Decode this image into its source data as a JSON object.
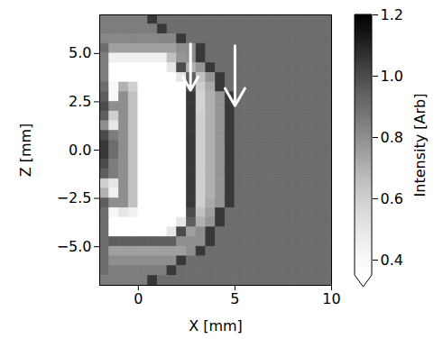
{
  "chart_data": {
    "type": "heatmap",
    "xlabel": "X [mm]",
    "ylabel": "Z [mm]",
    "xlim": [
      -2,
      10
    ],
    "ylim": [
      -7,
      7
    ],
    "xticks": [
      0,
      5,
      10
    ],
    "yticks": [
      {
        "value": -5,
        "label": "−5.0"
      },
      {
        "value": -2.5,
        "label": "−2.5"
      },
      {
        "value": 0,
        "label": "0.0"
      },
      {
        "value": 2.5,
        "label": "2.5"
      },
      {
        "value": 5,
        "label": "5.0"
      }
    ],
    "x_edges": [
      -2,
      -1.5,
      -1,
      -0.5,
      0,
      0.5,
      1,
      1.5,
      2,
      2.5,
      3,
      3.5,
      4,
      4.5,
      5,
      5.5,
      6,
      6.5,
      7,
      7.5,
      8,
      8.5,
      9,
      9.5,
      10
    ],
    "z_edges": [
      7,
      6.5,
      6,
      5.5,
      5,
      4.5,
      4,
      3.5,
      3,
      2.5,
      2,
      1.5,
      1,
      0.5,
      0,
      -0.5,
      -1,
      -1.5,
      -2,
      -2.5,
      -3,
      -3.5,
      -4,
      -4.5,
      -5,
      -5.5,
      -6,
      -6.5,
      -7
    ],
    "cells": [
      [
        0.85,
        0.85,
        0.85,
        0.85,
        0.85,
        1.05,
        0.9,
        0.9,
        0.9,
        0.9,
        0.9,
        0.9,
        0.9,
        0.9,
        0.9,
        0.9,
        0.9,
        0.9,
        0.9,
        0.9,
        0.9,
        0.9,
        0.9,
        0.9
      ],
      [
        0.85,
        0.85,
        0.85,
        0.85,
        0.85,
        0.85,
        1.05,
        0.9,
        0.9,
        0.9,
        0.9,
        0.9,
        0.9,
        0.9,
        0.9,
        0.9,
        0.9,
        0.9,
        0.9,
        0.9,
        0.9,
        0.9,
        0.9,
        0.9
      ],
      [
        0.82,
        0.82,
        0.82,
        0.82,
        0.82,
        0.82,
        0.82,
        0.82,
        1.05,
        0.9,
        0.9,
        0.9,
        0.9,
        0.9,
        0.9,
        0.9,
        0.9,
        0.9,
        0.9,
        0.9,
        0.9,
        0.9,
        0.9,
        0.9
      ],
      [
        0.9,
        0.75,
        0.75,
        0.75,
        0.75,
        0.75,
        0.75,
        0.75,
        0.8,
        0.8,
        1.05,
        0.9,
        0.9,
        0.9,
        0.9,
        0.9,
        0.9,
        0.9,
        0.9,
        0.9,
        0.9,
        0.9,
        0.9,
        0.9
      ],
      [
        0.85,
        0.45,
        0.45,
        0.45,
        0.45,
        0.45,
        0.45,
        0.65,
        0.78,
        0.8,
        1.05,
        0.9,
        0.9,
        0.9,
        0.9,
        0.9,
        0.9,
        0.9,
        0.9,
        0.9,
        0.9,
        0.9,
        0.9,
        0.9
      ],
      [
        0.85,
        0.35,
        0.35,
        0.35,
        0.35,
        0.35,
        0.35,
        0.5,
        1.0,
        0.7,
        0.78,
        1.05,
        0.9,
        0.9,
        0.9,
        0.9,
        0.9,
        0.9,
        0.9,
        0.9,
        0.9,
        0.9,
        0.9,
        0.9
      ],
      [
        0.85,
        0.35,
        0.35,
        0.35,
        0.35,
        0.35,
        0.35,
        0.35,
        0.5,
        0.95,
        0.65,
        0.78,
        1.05,
        0.9,
        0.9,
        0.9,
        0.9,
        0.9,
        0.9,
        0.9,
        0.9,
        0.9,
        0.9,
        0.9
      ],
      [
        0.9,
        0.4,
        0.7,
        0.6,
        0.35,
        0.35,
        0.35,
        0.35,
        0.35,
        1.0,
        0.6,
        0.72,
        1.05,
        0.9,
        0.9,
        0.9,
        0.9,
        0.9,
        0.9,
        0.9,
        0.9,
        0.9,
        0.9,
        0.9
      ],
      [
        0.95,
        0.4,
        0.8,
        0.65,
        0.35,
        0.35,
        0.35,
        0.35,
        0.35,
        1.05,
        0.58,
        0.7,
        0.78,
        1.05,
        0.9,
        0.9,
        0.9,
        0.9,
        0.9,
        0.9,
        0.9,
        0.9,
        0.9,
        0.9
      ],
      [
        1.0,
        0.8,
        0.8,
        0.65,
        0.35,
        0.35,
        0.35,
        0.35,
        0.35,
        1.05,
        0.58,
        0.7,
        0.78,
        1.05,
        0.9,
        0.9,
        0.9,
        0.9,
        0.9,
        0.9,
        0.9,
        0.9,
        0.9,
        0.9
      ],
      [
        0.95,
        0.6,
        0.8,
        0.65,
        0.35,
        0.35,
        0.35,
        0.35,
        0.35,
        1.05,
        0.6,
        0.7,
        0.78,
        1.05,
        0.9,
        0.9,
        0.9,
        0.9,
        0.9,
        0.9,
        0.9,
        0.9,
        0.9,
        0.9
      ],
      [
        0.8,
        0.5,
        0.8,
        0.65,
        0.35,
        0.35,
        0.35,
        0.35,
        0.35,
        1.05,
        0.6,
        0.7,
        0.78,
        1.05,
        0.9,
        0.9,
        0.9,
        0.9,
        0.9,
        0.9,
        0.9,
        0.9,
        0.9,
        0.9
      ],
      [
        1.0,
        0.85,
        0.8,
        0.65,
        0.35,
        0.35,
        0.35,
        0.35,
        0.35,
        1.05,
        0.6,
        0.7,
        0.78,
        1.05,
        0.9,
        0.9,
        0.9,
        0.9,
        0.9,
        0.9,
        0.9,
        0.9,
        0.9,
        0.9
      ],
      [
        1.05,
        0.9,
        0.8,
        0.65,
        0.35,
        0.35,
        0.35,
        0.35,
        0.35,
        1.05,
        0.6,
        0.7,
        0.78,
        1.05,
        0.9,
        0.9,
        0.9,
        0.9,
        0.9,
        0.9,
        0.9,
        0.9,
        0.9,
        0.9
      ],
      [
        1.05,
        0.9,
        0.8,
        0.65,
        0.35,
        0.35,
        0.35,
        0.35,
        0.35,
        1.05,
        0.6,
        0.7,
        0.78,
        1.05,
        0.9,
        0.9,
        0.9,
        0.9,
        0.9,
        0.9,
        0.9,
        0.9,
        0.9,
        0.9
      ],
      [
        1.0,
        0.85,
        0.8,
        0.65,
        0.35,
        0.35,
        0.35,
        0.35,
        0.35,
        1.05,
        0.6,
        0.7,
        0.78,
        1.05,
        0.9,
        0.9,
        0.9,
        0.9,
        0.9,
        0.9,
        0.9,
        0.9,
        0.9,
        0.9
      ],
      [
        0.95,
        0.85,
        0.8,
        0.65,
        0.35,
        0.35,
        0.35,
        0.35,
        0.35,
        1.05,
        0.6,
        0.7,
        0.78,
        1.05,
        0.9,
        0.9,
        0.9,
        0.9,
        0.9,
        0.9,
        0.9,
        0.9,
        0.9,
        0.9
      ],
      [
        0.6,
        0.5,
        0.8,
        0.65,
        0.35,
        0.35,
        0.35,
        0.35,
        0.35,
        1.05,
        0.6,
        0.7,
        0.78,
        1.05,
        0.9,
        0.9,
        0.9,
        0.9,
        0.9,
        0.9,
        0.9,
        0.9,
        0.9,
        0.9
      ],
      [
        0.7,
        0.45,
        0.8,
        0.65,
        0.35,
        0.35,
        0.35,
        0.35,
        0.35,
        1.05,
        0.6,
        0.7,
        0.78,
        1.05,
        0.9,
        0.9,
        0.9,
        0.9,
        0.9,
        0.9,
        0.9,
        0.9,
        0.9,
        0.9
      ],
      [
        0.95,
        0.8,
        0.8,
        0.65,
        0.35,
        0.35,
        0.35,
        0.35,
        0.35,
        1.05,
        0.6,
        0.72,
        0.78,
        1.05,
        0.9,
        0.9,
        0.9,
        0.9,
        0.9,
        0.9,
        0.9,
        0.9,
        0.9,
        0.9
      ],
      [
        0.9,
        0.4,
        0.5,
        0.45,
        0.35,
        0.35,
        0.35,
        0.35,
        0.35,
        1.0,
        0.65,
        0.75,
        1.05,
        0.9,
        0.9,
        0.9,
        0.9,
        0.9,
        0.9,
        0.9,
        0.9,
        0.9,
        0.9,
        0.9
      ],
      [
        0.9,
        0.35,
        0.35,
        0.35,
        0.35,
        0.35,
        0.35,
        0.35,
        0.5,
        0.95,
        0.7,
        0.78,
        1.05,
        0.9,
        0.9,
        0.9,
        0.9,
        0.9,
        0.9,
        0.9,
        0.9,
        0.9,
        0.9,
        0.9
      ],
      [
        0.9,
        0.35,
        0.35,
        0.35,
        0.35,
        0.35,
        0.35,
        0.5,
        1.0,
        0.75,
        0.8,
        1.05,
        0.9,
        0.9,
        0.9,
        0.9,
        0.9,
        0.9,
        0.9,
        0.9,
        0.9,
        0.9,
        0.9,
        0.9
      ],
      [
        0.9,
        0.95,
        0.95,
        0.95,
        0.95,
        0.95,
        0.95,
        0.95,
        0.8,
        0.8,
        0.8,
        1.05,
        0.9,
        0.9,
        0.9,
        0.9,
        0.9,
        0.9,
        0.9,
        0.9,
        0.9,
        0.9,
        0.9,
        0.9
      ],
      [
        0.9,
        0.75,
        0.75,
        0.75,
        0.75,
        0.75,
        0.75,
        0.75,
        0.75,
        0.8,
        1.05,
        0.9,
        0.9,
        0.9,
        0.9,
        0.9,
        0.9,
        0.9,
        0.9,
        0.9,
        0.9,
        0.9,
        0.9,
        0.9
      ],
      [
        0.9,
        0.8,
        0.8,
        0.8,
        0.8,
        0.8,
        0.8,
        0.8,
        1.05,
        0.9,
        0.9,
        0.9,
        0.9,
        0.9,
        0.9,
        0.9,
        0.9,
        0.9,
        0.9,
        0.9,
        0.9,
        0.9,
        0.9,
        0.9
      ],
      [
        0.9,
        0.85,
        0.85,
        0.85,
        0.85,
        0.85,
        0.85,
        1.05,
        0.9,
        0.9,
        0.9,
        0.9,
        0.9,
        0.9,
        0.9,
        0.9,
        0.9,
        0.9,
        0.9,
        0.9,
        0.9,
        0.9,
        0.9,
        0.9
      ],
      [
        0.85,
        0.85,
        0.85,
        0.85,
        0.85,
        1.05,
        0.9,
        0.9,
        0.9,
        0.9,
        0.9,
        0.9,
        0.9,
        0.9,
        0.9,
        0.9,
        0.9,
        0.9,
        0.9,
        0.9,
        0.9,
        0.9,
        0.9,
        0.9
      ]
    ],
    "colorbar": {
      "label": "Intensity [Arb]",
      "lim": [
        0.35,
        1.2
      ],
      "ticks": [
        0.4,
        0.6,
        0.8,
        {
          "value": 1,
          "label": "1.0"
        },
        1.2
      ],
      "color": "greys"
    },
    "arrows": [
      {
        "x": 2.7,
        "y_start": 5.5,
        "y_end": 3.1
      },
      {
        "x": 5.0,
        "y_start": 5.4,
        "y_end": 2.3
      }
    ]
  }
}
